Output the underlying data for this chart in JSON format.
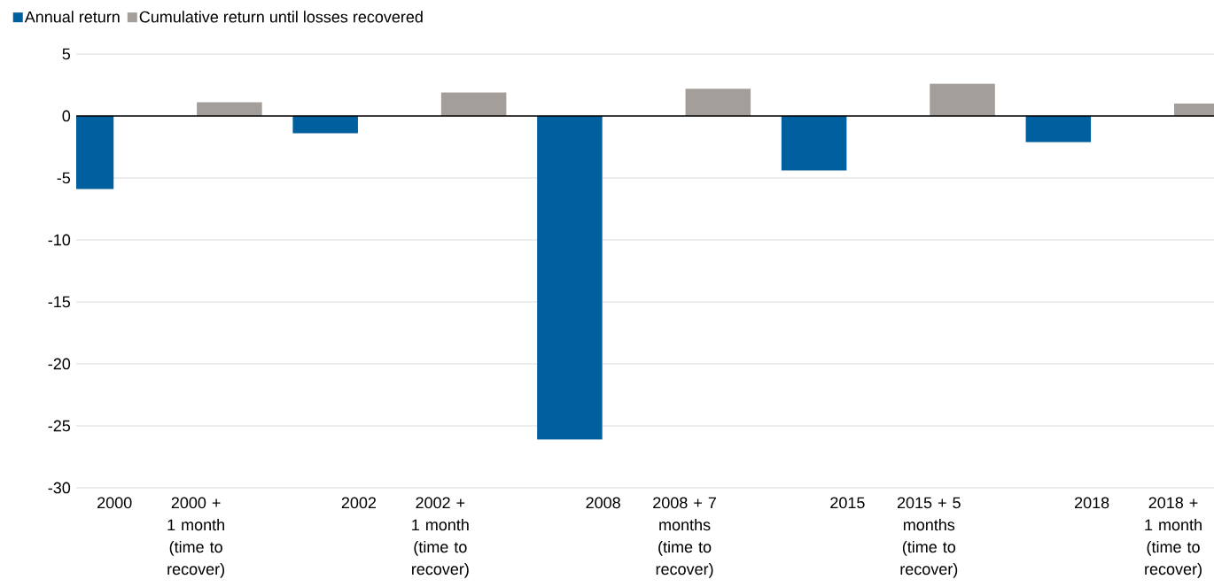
{
  "chart_data": {
    "type": "bar",
    "categories": [
      "2000",
      "2000 + 1 month (time to recover)",
      "2002",
      "2002 + 1 month (time to recover)",
      "2008",
      "2008 + 7 months (time to recover)",
      "2015",
      "2015 + 5 months (time to recover)",
      "2018",
      "2018 + 1 month (time to recover)"
    ],
    "series": [
      {
        "name": "Annual return",
        "color": "#005f9e",
        "values": [
          -5.9,
          null,
          -1.4,
          null,
          -26.1,
          null,
          -4.4,
          null,
          -2.1,
          null
        ]
      },
      {
        "name": "Cumulative return until losses recovered",
        "color": "#a39e99",
        "values": [
          null,
          1.1,
          null,
          1.9,
          null,
          2.2,
          null,
          2.6,
          null,
          1.0
        ]
      }
    ],
    "ylim": [
      -30,
      5
    ],
    "yticks": [
      5,
      0,
      -5,
      -10,
      -15,
      -20,
      -25,
      -30
    ],
    "grid": "y",
    "legend": "top left"
  }
}
